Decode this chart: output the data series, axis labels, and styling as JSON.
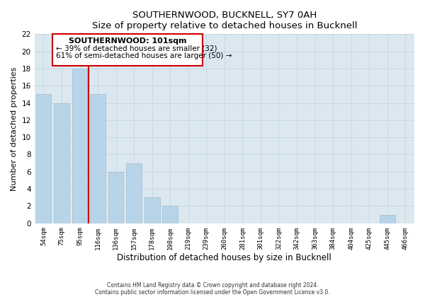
{
  "title": "SOUTHERNWOOD, BUCKNELL, SY7 0AH",
  "subtitle": "Size of property relative to detached houses in Bucknell",
  "xlabel": "Distribution of detached houses by size in Bucknell",
  "ylabel": "Number of detached properties",
  "bin_labels": [
    "54sqm",
    "75sqm",
    "95sqm",
    "116sqm",
    "136sqm",
    "157sqm",
    "178sqm",
    "198sqm",
    "219sqm",
    "239sqm",
    "260sqm",
    "281sqm",
    "301sqm",
    "322sqm",
    "342sqm",
    "363sqm",
    "384sqm",
    "404sqm",
    "425sqm",
    "445sqm",
    "466sqm"
  ],
  "bar_heights": [
    15,
    14,
    18,
    15,
    6,
    7,
    3,
    2,
    0,
    0,
    0,
    0,
    0,
    0,
    0,
    0,
    0,
    0,
    0,
    1,
    0
  ],
  "bar_color": "#b8d4e8",
  "grid_color": "#c8d8e8",
  "background_color": "#dce8f0",
  "ylim": [
    0,
    22
  ],
  "yticks": [
    0,
    2,
    4,
    6,
    8,
    10,
    12,
    14,
    16,
    18,
    20,
    22
  ],
  "property_line_x": 2.5,
  "property_line_color": "#cc0000",
  "annotation_title": "SOUTHERNWOOD: 101sqm",
  "annotation_line1": "← 39% of detached houses are smaller (32)",
  "annotation_line2": "61% of semi-detached houses are larger (50) →",
  "footer_line1": "Contains HM Land Registry data © Crown copyright and database right 2024.",
  "footer_line2": "Contains public sector information licensed under the Open Government Licence v3.0."
}
